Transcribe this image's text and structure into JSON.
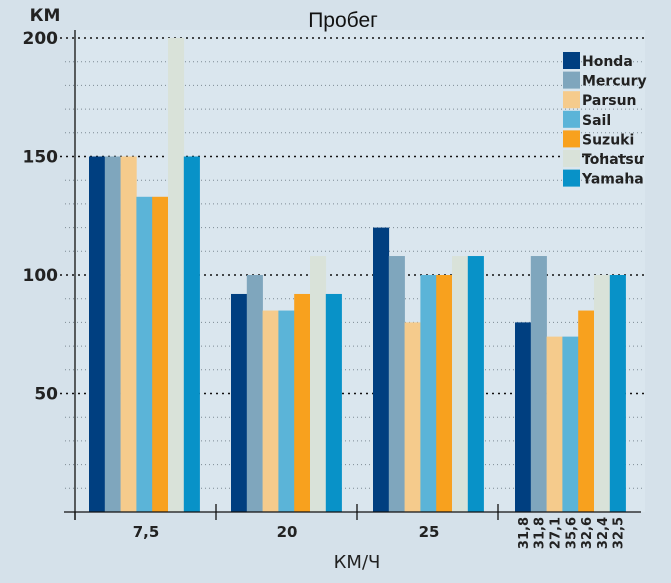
{
  "chart_data": {
    "type": "bar",
    "title": "Пробег",
    "ylabel": "КМ",
    "xlabel": "КМ/Ч",
    "ylim": [
      0,
      200
    ],
    "yticks": [
      "50",
      "100",
      "150",
      "200"
    ],
    "minor_grid_step": 10,
    "grid": true,
    "legend_position": "top-right",
    "categories": [
      "7,5",
      "20",
      "25",
      ""
    ],
    "last_group_speed_labels": [
      "31,8",
      "31,8",
      "27,1",
      "35,6",
      "32,6",
      "32,4",
      "32,5"
    ],
    "series": [
      {
        "name": "Honda",
        "color": "#003f80",
        "values": [
          150,
          92,
          120,
          80
        ]
      },
      {
        "name": "Mercury",
        "color": "#7fa6bd",
        "values": [
          150,
          100,
          108,
          108
        ]
      },
      {
        "name": "Parsun",
        "color": "#f5cb8c",
        "values": [
          150,
          85,
          80,
          74
        ]
      },
      {
        "name": "Sail",
        "color": "#5bb4d8",
        "values": [
          133,
          85,
          100,
          74
        ]
      },
      {
        "name": "Suzuki",
        "color": "#f8a11e",
        "values": [
          133,
          92,
          100,
          85
        ]
      },
      {
        "name": "Tohatsu",
        "color": "#d9e2d9",
        "values": [
          200,
          108,
          108,
          100
        ]
      },
      {
        "name": "Yamaha",
        "color": "#0892c8",
        "values": [
          150,
          92,
          108,
          100
        ]
      }
    ]
  }
}
